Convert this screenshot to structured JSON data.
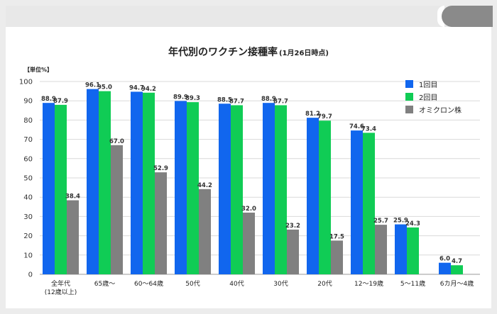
{
  "chart_data": {
    "type": "bar",
    "title": "年代別のワクチン接種率",
    "subtitle": "(1月26日時点)",
    "ylabel": "【単位%】",
    "ylim": [
      0,
      100
    ],
    "yticks": [
      0,
      10,
      20,
      30,
      40,
      50,
      60,
      70,
      80,
      90,
      100
    ],
    "grid": true,
    "legend_position": "top-right",
    "categories": [
      [
        "全年代",
        "(12歳以上)"
      ],
      [
        "65歳〜"
      ],
      [
        "60〜64歳"
      ],
      [
        "50代"
      ],
      [
        "40代"
      ],
      [
        "30代"
      ],
      [
        "20代"
      ],
      [
        "12〜19歳"
      ],
      [
        "5〜11歳"
      ],
      [
        "6カ月〜4歳"
      ]
    ],
    "series": [
      {
        "name": "1回目",
        "color": "#1166ee",
        "values": [
          88.9,
          96.1,
          94.7,
          89.9,
          88.5,
          88.9,
          81.2,
          74.6,
          25.9,
          6.0
        ]
      },
      {
        "name": "2回目",
        "color": "#10cc55",
        "values": [
          87.9,
          95.0,
          94.2,
          89.3,
          87.7,
          87.7,
          79.7,
          73.4,
          24.3,
          4.7
        ]
      },
      {
        "name": "オミクロン株",
        "color": "#808080",
        "values": [
          38.4,
          67.0,
          52.9,
          44.2,
          32.0,
          23.2,
          17.5,
          25.7,
          null,
          null
        ]
      }
    ]
  }
}
